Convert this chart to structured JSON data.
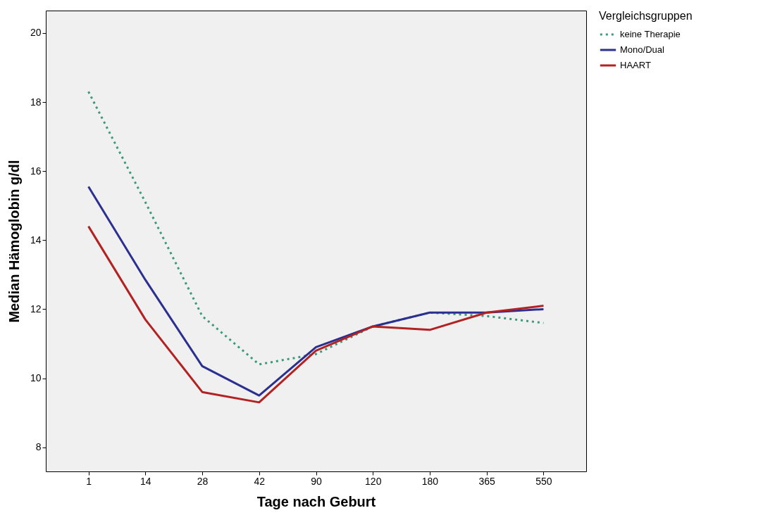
{
  "chart_data": {
    "type": "line",
    "xlabel": "Tage nach Geburt",
    "ylabel": "Median Hämoglobin g/dl",
    "legend_title": "Vergleichsgruppen",
    "legend": "top right",
    "grid": false,
    "marker": "none",
    "categories": [
      "1",
      "14",
      "28",
      "42",
      "90",
      "120",
      "180",
      "365",
      "550"
    ],
    "ylim": [
      7.3,
      20.65
    ],
    "yticks": [
      8,
      10,
      12,
      14,
      16,
      18,
      20
    ],
    "series": [
      {
        "name": "keine Therapie",
        "color": "#3a9a7a",
        "line_style": "dotted",
        "values": [
          18.3,
          15.1,
          11.8,
          10.4,
          10.7,
          11.5,
          11.9,
          11.8,
          11.6
        ]
      },
      {
        "name": "Mono/Dual",
        "color": "#2b2f8f",
        "line_style": "solid",
        "values": [
          15.55,
          12.85,
          10.35,
          9.5,
          10.9,
          11.5,
          11.9,
          11.9,
          12.0
        ]
      },
      {
        "name": "HAART",
        "color": "#b22222",
        "line_style": "solid",
        "values": [
          14.4,
          11.7,
          9.6,
          9.3,
          10.8,
          11.5,
          11.4,
          11.9,
          12.1
        ]
      }
    ]
  }
}
